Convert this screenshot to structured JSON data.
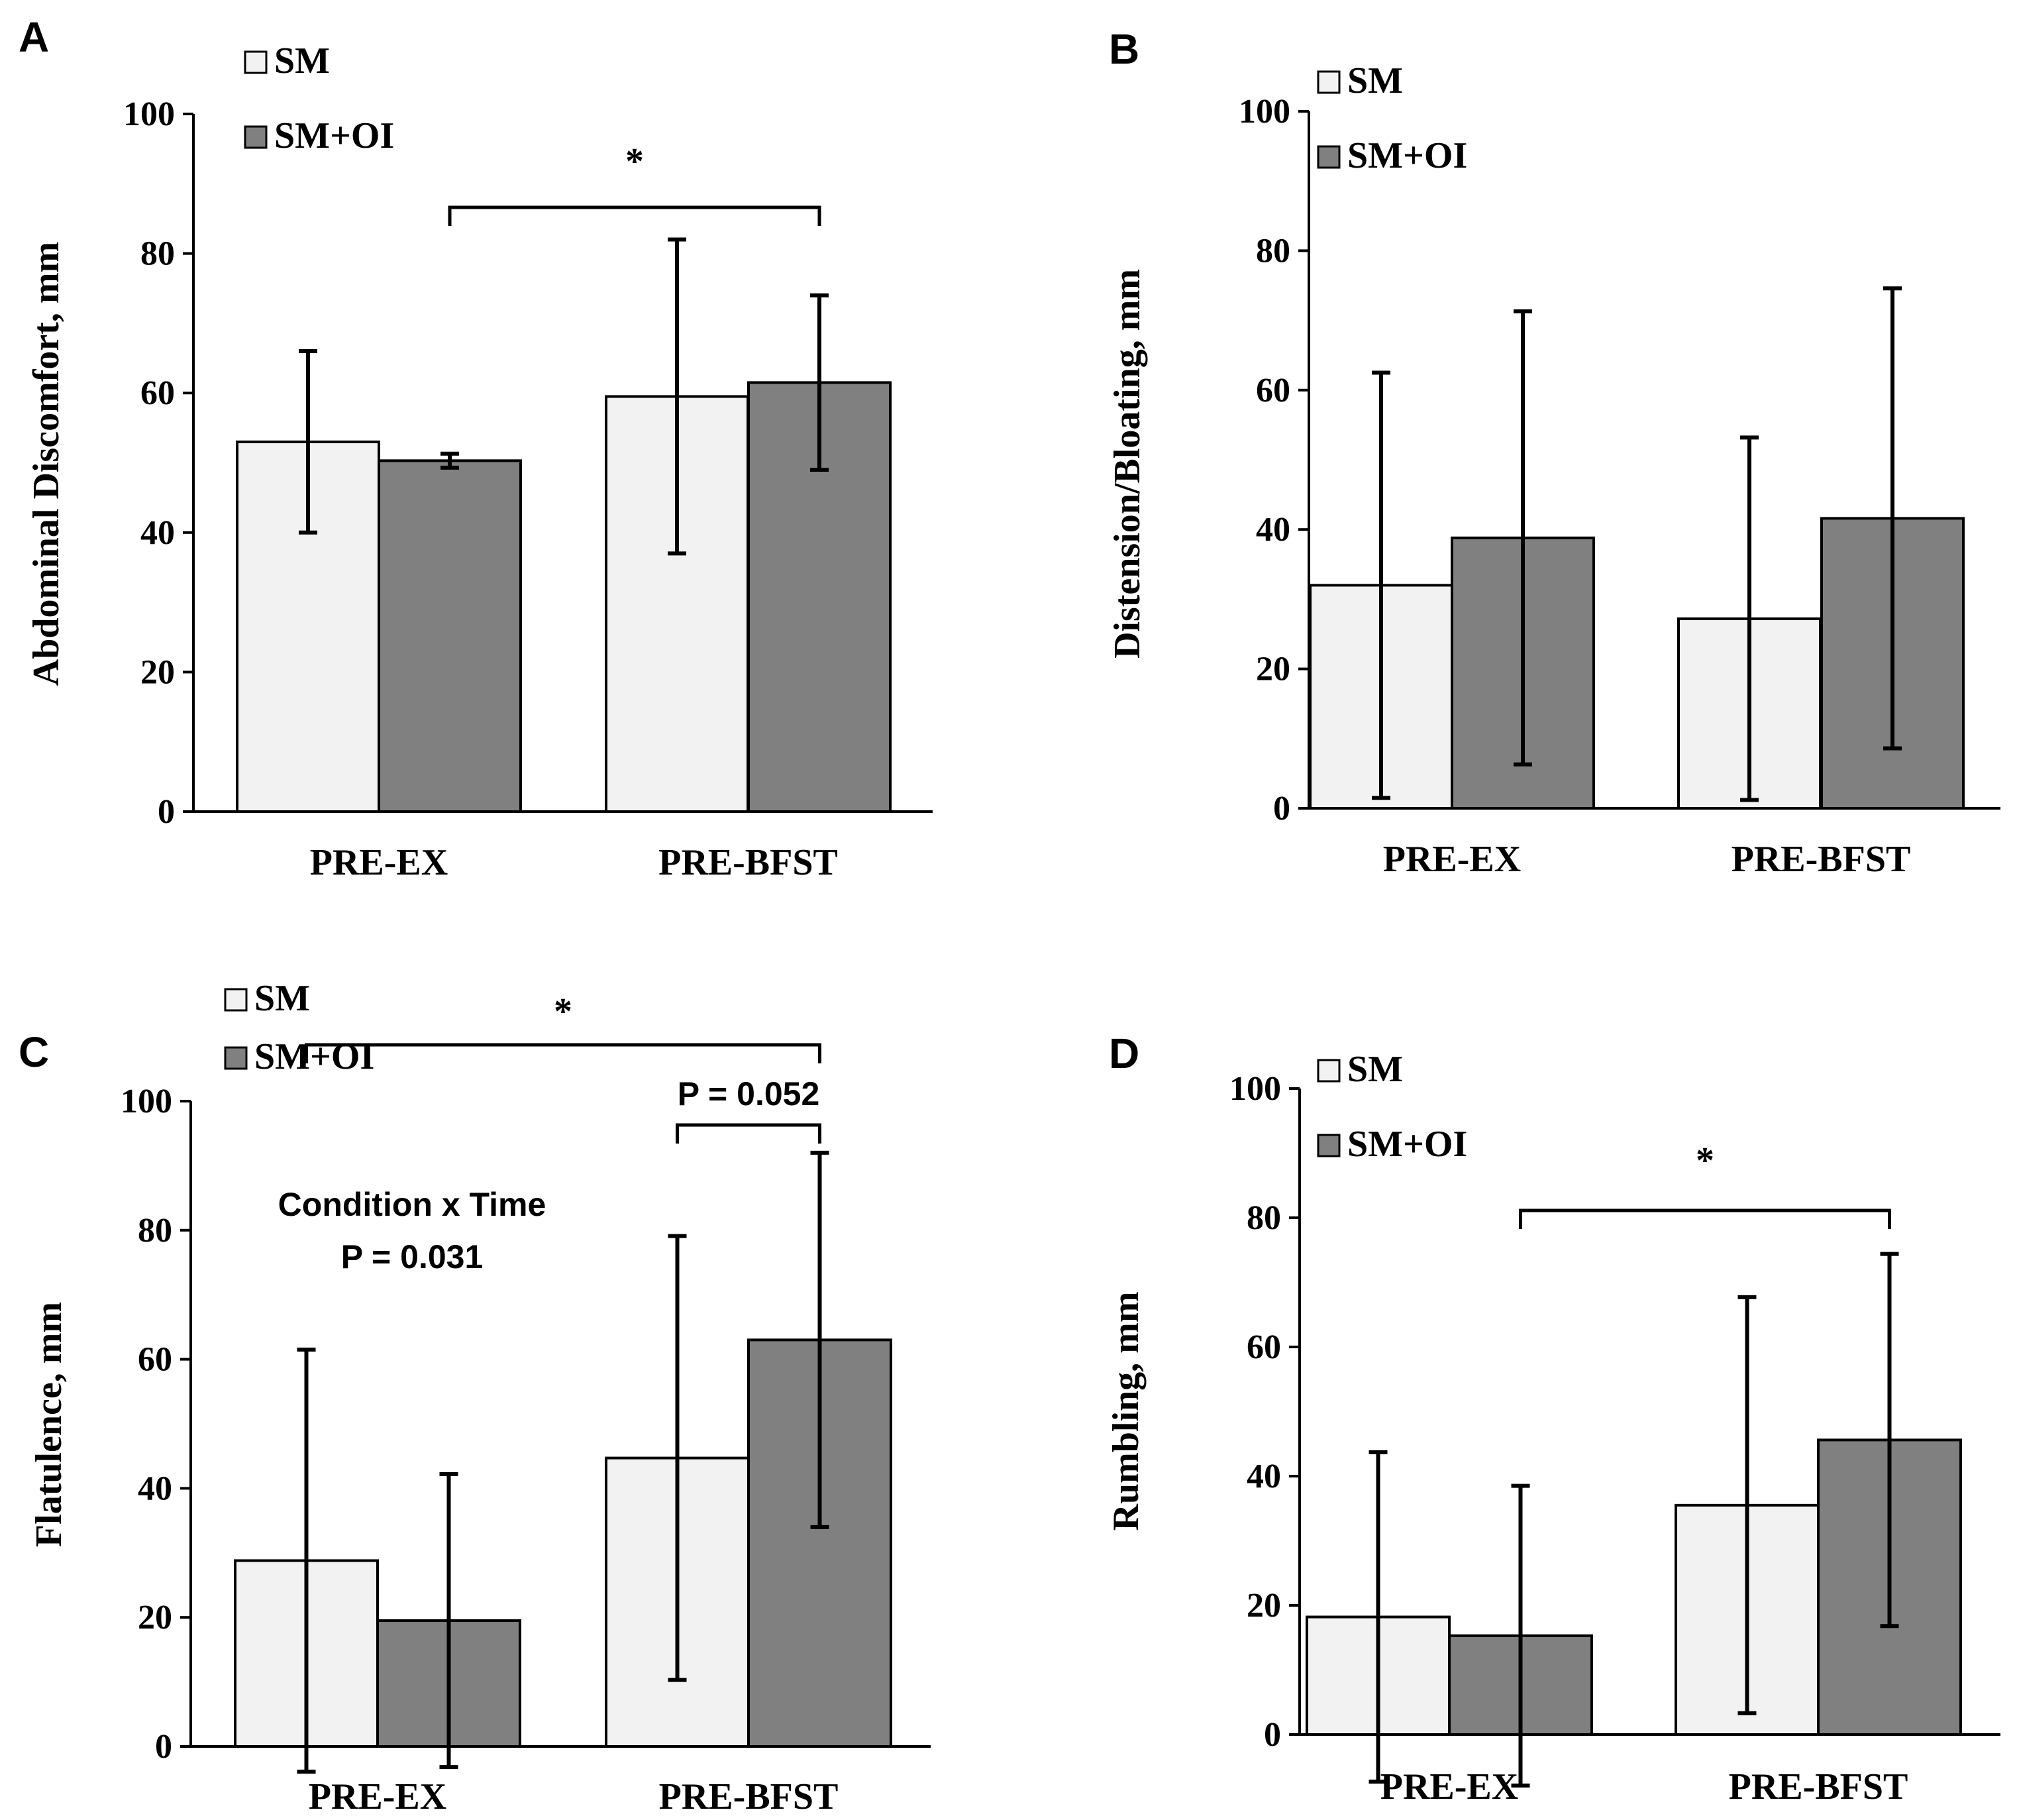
{
  "figure": {
    "colors": {
      "SM": "#f2f2f2",
      "SM+OI": "#808080",
      "outline": "#000000"
    }
  },
  "chart_data": [
    {
      "type": "bar",
      "panel": "A",
      "categories": [
        "PRE-EX",
        "PRE-BFST"
      ],
      "series": [
        {
          "name": "SM",
          "values": [
            53,
            59.5
          ],
          "errors": [
            13,
            22.5
          ]
        },
        {
          "name": "SM+OI",
          "values": [
            50.3,
            61.5
          ],
          "errors": [
            1,
            12.5
          ]
        }
      ],
      "xlabel": "",
      "ylabel": "Abdominal Discomfort, mm",
      "ylim": [
        0,
        100
      ],
      "yticks": [
        0,
        20,
        40,
        60,
        80,
        100
      ],
      "legend": {
        "position": "top-left",
        "entries": [
          "SM",
          "SM+OI"
        ]
      },
      "annotations": [
        {
          "type": "bracket",
          "label": "*",
          "from": "PRE-EX:SM+OI",
          "to": "PRE-BFST:SM+OI"
        }
      ]
    },
    {
      "type": "bar",
      "panel": "B",
      "categories": [
        "PRE-EX",
        "PRE-BFST"
      ],
      "series": [
        {
          "name": "SM",
          "values": [
            32,
            27.2
          ],
          "errors": [
            30.5,
            26
          ]
        },
        {
          "name": "SM+OI",
          "values": [
            38.8,
            41.6
          ],
          "errors": [
            32.5,
            33
          ]
        }
      ],
      "xlabel": "",
      "ylabel": "Distension/Bloating, mm",
      "ylim": [
        0,
        100
      ],
      "yticks": [
        0,
        20,
        40,
        60,
        80,
        100
      ],
      "legend": {
        "position": "top-left",
        "entries": [
          "SM",
          "SM+OI"
        ]
      },
      "annotations": []
    },
    {
      "type": "bar",
      "panel": "C",
      "categories": [
        "PRE-EX",
        "PRE-BFST"
      ],
      "series": [
        {
          "name": "SM",
          "values": [
            28.8,
            44.7
          ],
          "errors": [
            32.7,
            34.4
          ]
        },
        {
          "name": "SM+OI",
          "values": [
            19.5,
            63
          ],
          "errors": [
            22.7,
            29
          ]
        }
      ],
      "xlabel": "",
      "ylabel": "Flatulence, mm",
      "ylim": [
        0,
        100
      ],
      "yticks": [
        0,
        20,
        40,
        60,
        80,
        100
      ],
      "legend": {
        "position": "top-left",
        "entries": [
          "SM",
          "SM+OI"
        ]
      },
      "annotations": [
        {
          "type": "bracket",
          "label": "*",
          "from": "PRE-EX:SM",
          "to": "PRE-BFST:SM+OI"
        },
        {
          "type": "bracket",
          "label": "P = 0.052",
          "from": "PRE-BFST:SM",
          "to": "PRE-BFST:SM+OI"
        },
        {
          "type": "text",
          "lines": [
            "Condition x Time",
            "P = 0.031"
          ]
        }
      ]
    },
    {
      "type": "bar",
      "panel": "D",
      "categories": [
        "PRE-EX",
        "PRE-BFST"
      ],
      "series": [
        {
          "name": "SM",
          "values": [
            18.2,
            35.5
          ],
          "errors": [
            25.5,
            32.2
          ]
        },
        {
          "name": "SM+OI",
          "values": [
            15.3,
            45.6
          ],
          "errors": [
            23.2,
            28.8
          ]
        }
      ],
      "xlabel": "",
      "ylabel": "Rumbling, mm",
      "ylim": [
        0,
        100
      ],
      "yticks": [
        0,
        20,
        40,
        60,
        80,
        100
      ],
      "legend": {
        "position": "top-left",
        "entries": [
          "SM",
          "SM+OI"
        ]
      },
      "annotations": [
        {
          "type": "bracket",
          "label": "*",
          "from": "PRE-EX:SM+OI",
          "to": "PRE-BFST:SM+OI"
        }
      ]
    }
  ]
}
